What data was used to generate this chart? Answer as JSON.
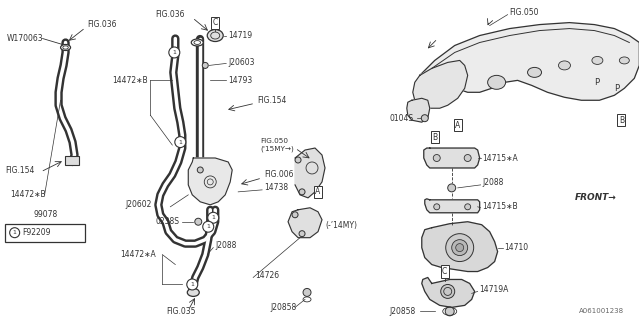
{
  "bg_color": "#ffffff",
  "lc": "#555555",
  "lc_dark": "#333333",
  "part_number": "A061001238",
  "labels": {
    "fig036_topleft": "FIG.036",
    "fig036_topcenter": "FIG.036",
    "fig050_top": "FIG.050",
    "fig154_left": "FIG.154",
    "fig154_center": "FIG.154",
    "fig006": "FIG.006",
    "fig035": "FIG.035",
    "fig050_mid": "FIG.050\n('15MY→)",
    "w170063": "W170063",
    "14472B": "14472∗B",
    "14472A": "14472∗A",
    "99078": "99078",
    "14719": "14719",
    "14793": "14793",
    "j20603": "J20603",
    "j20602": "J20602",
    "j2088_c": "J2088",
    "j2088_r": "J2088",
    "14738": "14738",
    "14726": "14726",
    "j20858": "J20858",
    "14715A": "14715∗A",
    "14715B": "14715∗B",
    "14710": "14710",
    "14719A": "14719A",
    "0104S": "0104S",
    "0238S": "0238S",
    "f92209": "F92209",
    "front": "FRONT→",
    "14my": "(-’14MY)"
  }
}
